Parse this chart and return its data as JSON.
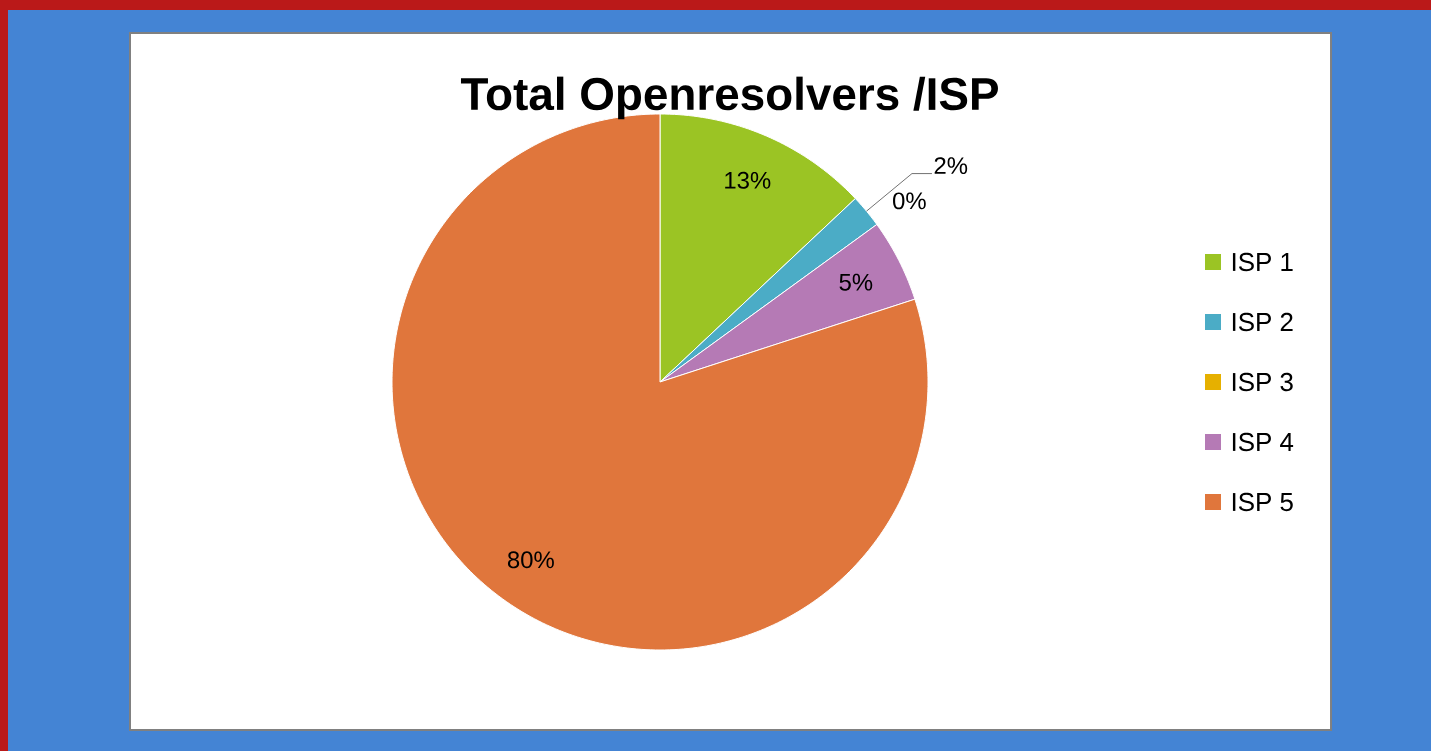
{
  "chart_data": {
    "type": "pie",
    "title": "Total Openresolvers /ISP",
    "categories": [
      "ISP 1",
      "ISP 2",
      "ISP 3",
      "ISP 4",
      "ISP 5"
    ],
    "values": [
      13,
      2,
      0,
      5,
      80
    ],
    "colors": [
      "#9bc424",
      "#4bacc6",
      "#e6b000",
      "#b57ab5",
      "#e0763c"
    ],
    "value_labels": [
      "13%",
      "2%",
      "0%",
      "5%",
      "80%"
    ],
    "legend": "right"
  }
}
